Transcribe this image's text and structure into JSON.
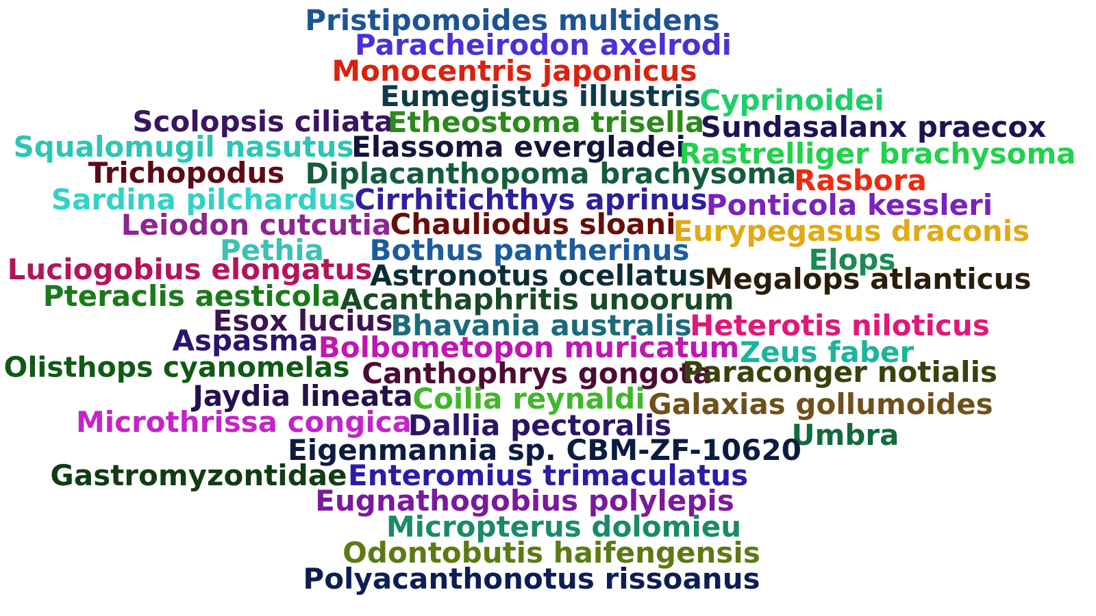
{
  "words": [
    {
      "text": "Pristipomoides multidens",
      "color": "#1d5494"
    },
    {
      "text": "Paracheirodon axelrodi",
      "color": "#4f2fd6"
    },
    {
      "text": "Monocentris japonicus",
      "color": "#d9230f"
    },
    {
      "text": "Eumegistus illustris",
      "color": "#0f3a4a"
    },
    {
      "text": "Cyprinoidei",
      "color": "#1fcf6a"
    },
    {
      "text": "Scolopsis ciliata",
      "color": "#3a1560"
    },
    {
      "text": "Etheostoma trisella",
      "color": "#2c8a1c"
    },
    {
      "text": "Sundasalanx praecox",
      "color": "#1c1452"
    },
    {
      "text": "Squalomugil nasutus",
      "color": "#2cc6b4"
    },
    {
      "text": "Elassoma evergladei",
      "color": "#14143c"
    },
    {
      "text": "Rastrelliger brachysoma",
      "color": "#22d14c"
    },
    {
      "text": "Trichopodus",
      "color": "#5c0a18"
    },
    {
      "text": "Diplacanthopoma brachysoma",
      "color": "#155c3c"
    },
    {
      "text": "Rasbora",
      "color": "#f0290f"
    },
    {
      "text": "Sardina pilchardus",
      "color": "#32d2c6"
    },
    {
      "text": "Cirrhitichthys aprinus",
      "color": "#2e209a"
    },
    {
      "text": "Ponticola kessleri",
      "color": "#7c22bc"
    },
    {
      "text": "Leiodon cutcutia",
      "color": "#8c2690"
    },
    {
      "text": "Chauliodus sloani",
      "color": "#660e08"
    },
    {
      "text": "Eurypegasus draconis",
      "color": "#e0aa14"
    },
    {
      "text": "Pethia",
      "color": "#3cc2b4"
    },
    {
      "text": "Bothus pantherinus",
      "color": "#1c5c9c"
    },
    {
      "text": "Elops",
      "color": "#1c8a56"
    },
    {
      "text": "Luciogobius elongatus",
      "color": "#b4145a"
    },
    {
      "text": "Astronotus ocellatus",
      "color": "#0c2c38"
    },
    {
      "text": "Megalops atlanticus",
      "color": "#2a1e0a"
    },
    {
      "text": "Pteraclis aesticola",
      "color": "#1a7a1a"
    },
    {
      "text": "Acanthaphritis unoorum",
      "color": "#184a26"
    },
    {
      "text": "Esox lucius",
      "color": "#3c1450"
    },
    {
      "text": "Bhavania australis",
      "color": "#1c6a7a"
    },
    {
      "text": "Heterotis niloticus",
      "color": "#e0187a"
    },
    {
      "text": "Aspasma",
      "color": "#2a146c"
    },
    {
      "text": "Bolbometopon muricatum",
      "color": "#c016b4"
    },
    {
      "text": "Zeus faber",
      "color": "#1cb49a"
    },
    {
      "text": "Olisthops cyanomelas",
      "color": "#0f5a14"
    },
    {
      "text": "Canthophrys gongota",
      "color": "#4c0c34"
    },
    {
      "text": "Paraconger notialis",
      "color": "#3a420c"
    },
    {
      "text": "Jaydia lineata",
      "color": "#24104c"
    },
    {
      "text": "Coilia reynaldi",
      "color": "#42b62a"
    },
    {
      "text": "Galaxias gollumoides",
      "color": "#70501a"
    },
    {
      "text": "Microthrissa congica",
      "color": "#c424c8"
    },
    {
      "text": "Dallia pectoralis",
      "color": "#2a1666"
    },
    {
      "text": "Umbra",
      "color": "#146a3c"
    },
    {
      "text": "Eigenmannia sp. CBM-ZF-10620",
      "color": "#0c1c40"
    },
    {
      "text": "Gastromyzontidae",
      "color": "#123c14"
    },
    {
      "text": "Enteromius trimaculatus",
      "color": "#2a1ca8"
    },
    {
      "text": "Eugnathogobius polylepis",
      "color": "#7a1a9c"
    },
    {
      "text": "Micropterus dolomieu",
      "color": "#1a8a6a"
    },
    {
      "text": "Odontobutis haifengensis",
      "color": "#5c7a14"
    },
    {
      "text": "Polyacanthonotus rissoanus",
      "color": "#0c1e54"
    }
  ]
}
